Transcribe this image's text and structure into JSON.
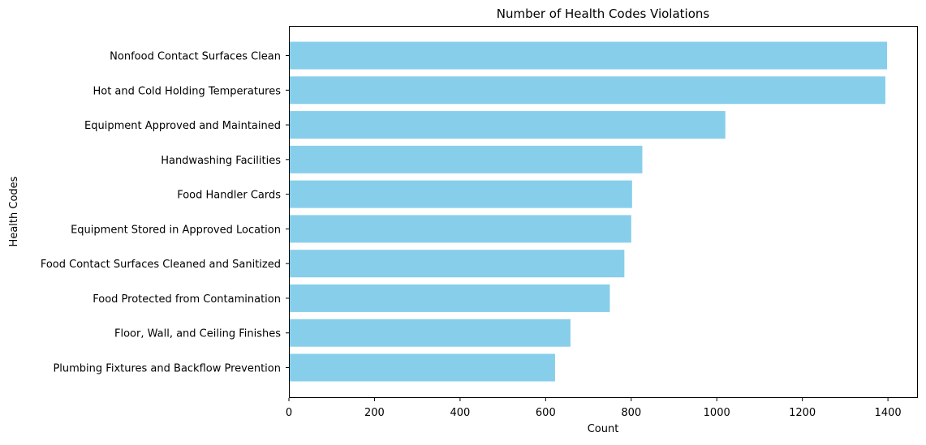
{
  "chart_data": {
    "type": "bar",
    "orientation": "horizontal",
    "title": "Number of Health Codes Violations",
    "xlabel": "Count",
    "ylabel": "Health Codes",
    "categories": [
      "Nonfood Contact Surfaces Clean",
      "Hot and Cold Holding Temperatures",
      "Equipment Approved and Maintained",
      "Handwashing Facilities",
      "Food Handler Cards",
      "Equipment Stored in Approved Location",
      "Food Contact Surfaces Cleaned and Sanitized",
      "Food Protected from Contamination",
      "Floor, Wall, and Ceiling Finishes",
      "Plumbing Fixtures and Backflow Prevention"
    ],
    "values": [
      1398,
      1394,
      1020,
      826,
      802,
      800,
      784,
      750,
      658,
      622
    ],
    "xlim": [
      0,
      1470
    ],
    "xticks": [
      0,
      200,
      400,
      600,
      800,
      1000,
      1200,
      1400
    ],
    "bar_color": "#87ceeb",
    "grid": false,
    "legend": "none"
  }
}
